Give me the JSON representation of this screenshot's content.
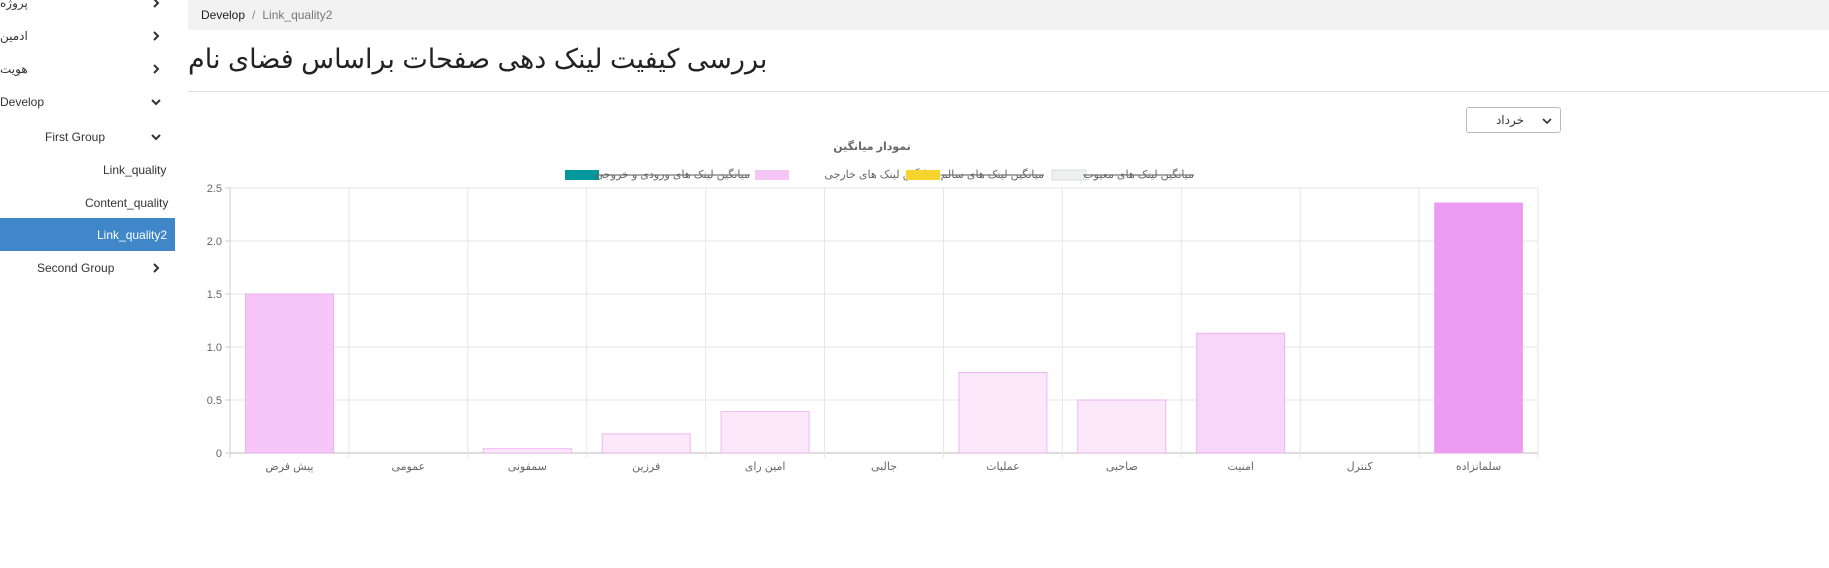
{
  "sidebar": {
    "items": [
      {
        "label": "پروژه",
        "expanded": false,
        "rtl": true
      },
      {
        "label": "ادمین",
        "expanded": false,
        "rtl": true
      },
      {
        "label": "هویت",
        "expanded": false,
        "rtl": true
      },
      {
        "label": "Develop",
        "expanded": true,
        "rtl": false
      },
      {
        "label": "First Group",
        "expanded": true,
        "rtl": false
      },
      {
        "label": "Link_quality",
        "rtl": false
      },
      {
        "label": "Content_quality",
        "rtl": false
      },
      {
        "label": "Link_quality2",
        "active": true,
        "rtl": false
      },
      {
        "label": "Second Group",
        "expanded": false,
        "rtl": false
      }
    ]
  },
  "breadcrumb": {
    "parent": "Develop",
    "separator": "/",
    "current": "Link_quality2"
  },
  "page": {
    "title": "بررسی کیفیت لینک دهی صفحات براساس فضای نام"
  },
  "filter": {
    "month": "خرداد"
  },
  "colors": {
    "sidebar_active": "#3f87c9",
    "legend": [
      "#00979d",
      "#f5c6f7",
      "#f6d42e",
      "#eef0ef"
    ]
  },
  "chart_data": {
    "type": "bar",
    "title": "نمودار میانگین",
    "categories": [
      "پیش فرض",
      "عمومی",
      "سمفونی",
      "فرزین",
      "امین رای",
      "جالبی",
      "عملیات",
      "صاحبی",
      "امنیت",
      "کنترل",
      "سلمانزاده"
    ],
    "series": [
      {
        "name": "میانگین لینک های ورودی و خروجی",
        "hidden": true,
        "color": "#00979d"
      },
      {
        "name": "میانگین لینک های خارجی",
        "hidden": false,
        "color": "#f5c6f7",
        "values": [
          1.5,
          0,
          0.04,
          0.18,
          0.39,
          0,
          0.76,
          0.5,
          1.13,
          0,
          2.36
        ],
        "bar_colors": [
          "#f5c6f7",
          "#f5c6f7",
          "#fbe9fb",
          "#fbe9fb",
          "#fbe9fb",
          "#fbe9fb",
          "#fbe9fb",
          "#fbe9fb",
          "#f8d6f9",
          "#f5c6f7",
          "#ed9af3"
        ]
      },
      {
        "name": "میانگین لینک های سالم",
        "hidden": true,
        "color": "#f6d42e"
      },
      {
        "name": "میانگین لینک های معیوب",
        "hidden": true,
        "color": "#eef0ef"
      }
    ],
    "ylim": [
      0,
      2.5
    ],
    "yticks": [
      "0",
      "0.5",
      "1.0",
      "1.5",
      "2.0",
      "2.5"
    ],
    "grid": true,
    "legend_position": "top"
  }
}
